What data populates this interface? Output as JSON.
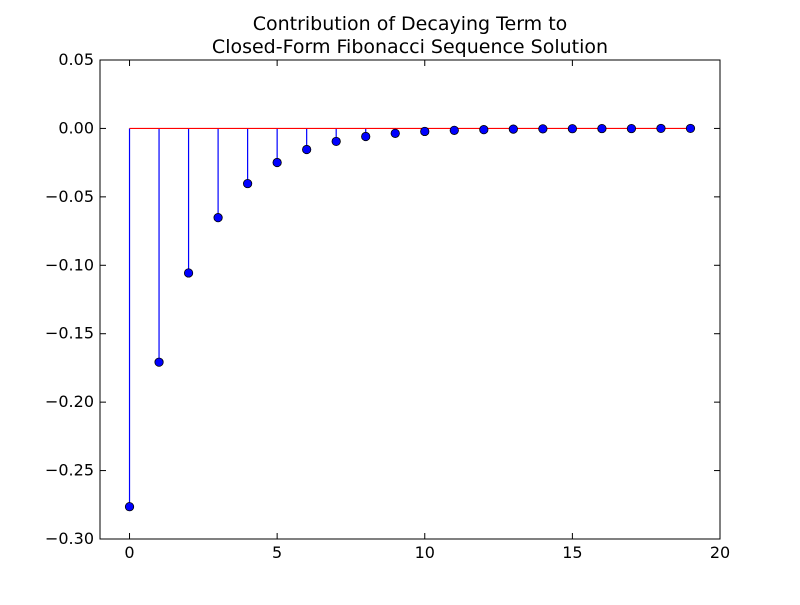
{
  "chart_data": {
    "type": "stem",
    "title_lines": [
      "Contribution of Decaying Term to",
      "Closed-Form Fibonacci Sequence Solution"
    ],
    "xlabel": "",
    "ylabel": "",
    "xlim": [
      -1,
      20
    ],
    "ylim": [
      -0.3,
      0.05
    ],
    "xticks": [
      0,
      5,
      10,
      15,
      20
    ],
    "xtick_labels": [
      "0",
      "5",
      "10",
      "15",
      "20"
    ],
    "yticks": [
      0.05,
      0.0,
      -0.05,
      -0.1,
      -0.15,
      -0.2,
      -0.25,
      -0.3
    ],
    "ytick_labels": [
      "0.05",
      "0.00",
      "−0.05",
      "−0.10",
      "−0.15",
      "−0.20",
      "−0.25",
      "−0.30"
    ],
    "grid": false,
    "baseline": 0,
    "x": [
      0,
      1,
      2,
      3,
      4,
      5,
      6,
      7,
      8,
      9,
      10,
      11,
      12,
      13,
      14,
      15,
      16,
      17,
      18,
      19
    ],
    "values": [
      -0.2764,
      -0.1708,
      -0.1056,
      -0.0652,
      -0.0403,
      -0.0249,
      -0.0154,
      -0.0095,
      -0.0059,
      -0.0036,
      -0.0022,
      -0.0014,
      -0.0009,
      -0.0005,
      -0.0003,
      -0.0002,
      -0.0001,
      -0.0001,
      0.0,
      0.0
    ],
    "colors": {
      "stem": "#0000ff",
      "marker": "#0000ff",
      "marker_edge": "#000000",
      "baseline": "#ff0000",
      "axes": "#000000"
    }
  }
}
